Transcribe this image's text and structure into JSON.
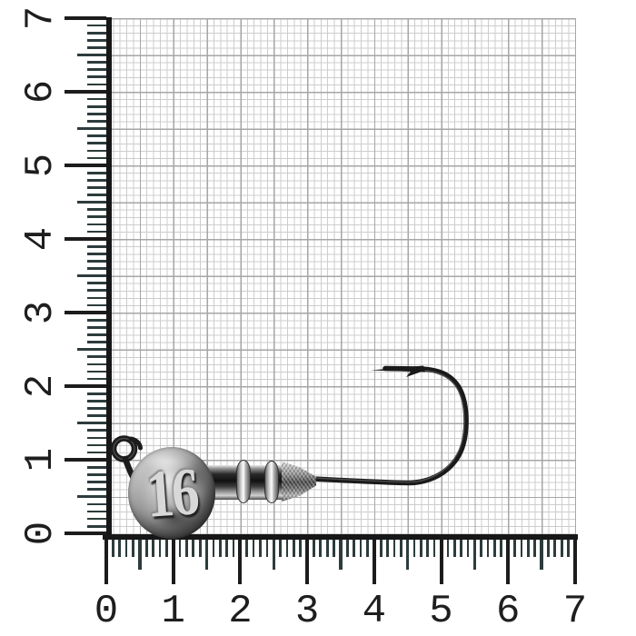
{
  "scene": {
    "subject": "lead jig head with sickle hook on millimeter graph paper",
    "weight_stamp": "16"
  },
  "ruler": {
    "unit_span": 7,
    "minor_ticks_per_unit": 10,
    "left_labels": [
      "7",
      "6",
      "5",
      "4",
      "3",
      "2",
      "1",
      "0"
    ],
    "bottom_labels": [
      "0",
      "1",
      "2",
      "3",
      "4",
      "5",
      "6",
      "7"
    ]
  },
  "colors": {
    "background": "#ffffff",
    "grid_fine": "#cdcdcd",
    "grid_medium": "#a6a6a6",
    "axis": "#171717",
    "tick_minor": "#2d3c3c",
    "tick_major": "#1c1c1c",
    "number": "#1e1e1e",
    "hook": "#1a1a1a",
    "metal_light": "#d8d8d8"
  }
}
